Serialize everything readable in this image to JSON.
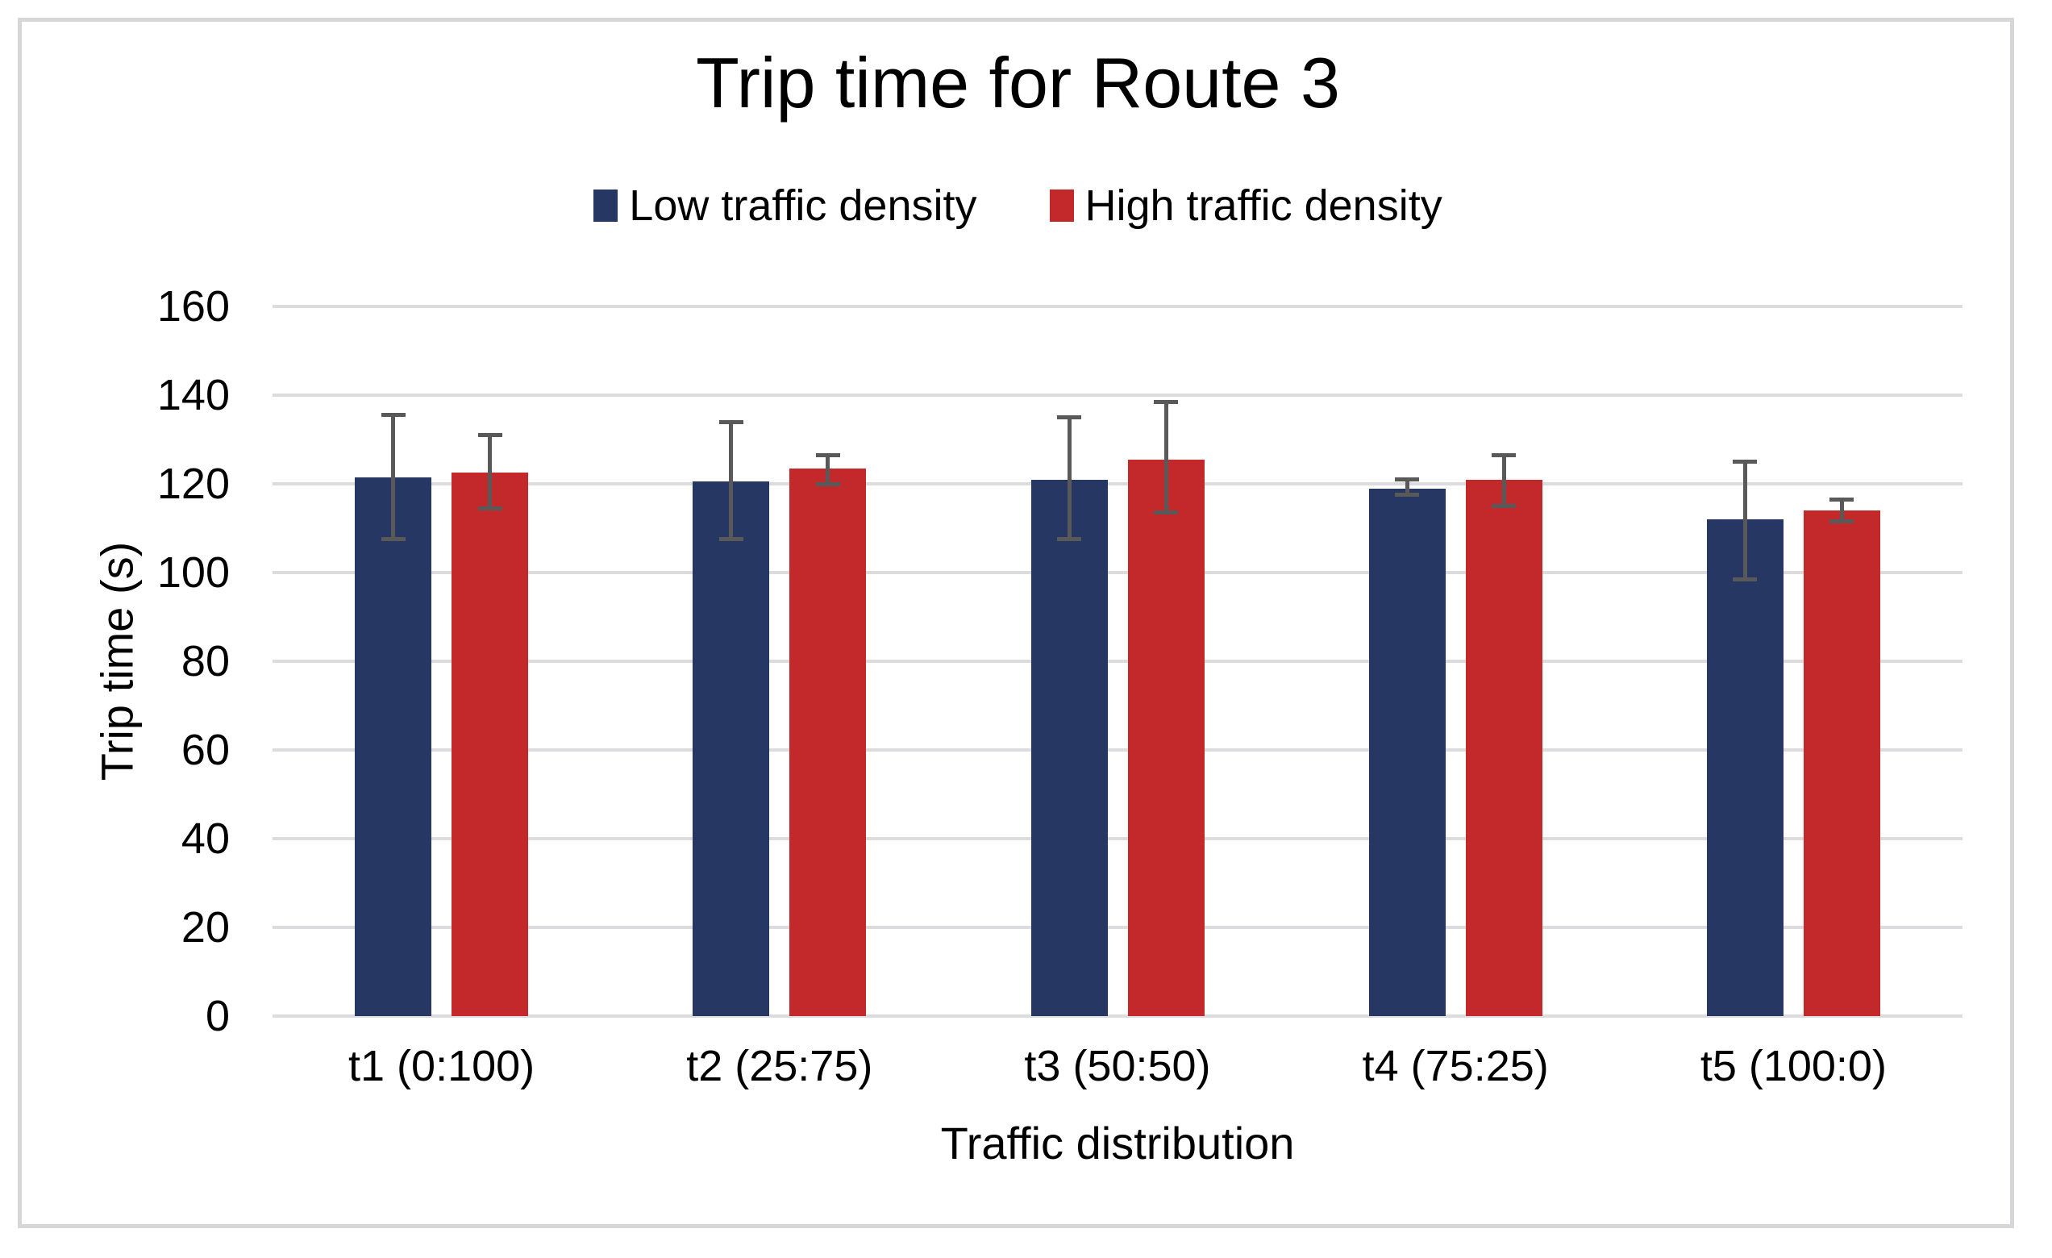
{
  "chart_data": {
    "type": "bar",
    "title": "Trip time for Route 3",
    "xlabel": "Traffic distribution",
    "ylabel": "Trip time (s)",
    "ylim": [
      0,
      160
    ],
    "ytick_step": 20,
    "ytick_labels": [
      "0",
      "20",
      "40",
      "60",
      "80",
      "100",
      "120",
      "140",
      "160"
    ],
    "categories": [
      "t1 (0:100)",
      "t2 (25:75)",
      "t3 (50:50)",
      "t4 (75:25)",
      "t5 (100:0)"
    ],
    "series": [
      {
        "name": "Low traffic density",
        "color": "#263763",
        "values": [
          121.5,
          120.5,
          121,
          119,
          112
        ],
        "error_bars": [
          [
            107.5,
            135.5
          ],
          [
            107.5,
            134
          ],
          [
            107.5,
            135
          ],
          [
            117.5,
            121
          ],
          [
            98.5,
            125
          ]
        ]
      },
      {
        "name": "High traffic density",
        "color": "#C3282B",
        "values": [
          122.5,
          123.5,
          125.5,
          121,
          114
        ],
        "error_bars": [
          [
            114.5,
            131
          ],
          [
            120,
            126.5
          ],
          [
            113.5,
            138.5
          ],
          [
            115,
            126.5
          ],
          [
            111.5,
            116.5
          ]
        ]
      }
    ],
    "legend_position": "top",
    "grid": true
  },
  "style": {
    "gridline_color": "#DCDCDF",
    "error_bar_color": "#595959",
    "frame_border_color": "#D7D7DA",
    "background": "#FFFFFF",
    "text_color": "#000000"
  }
}
